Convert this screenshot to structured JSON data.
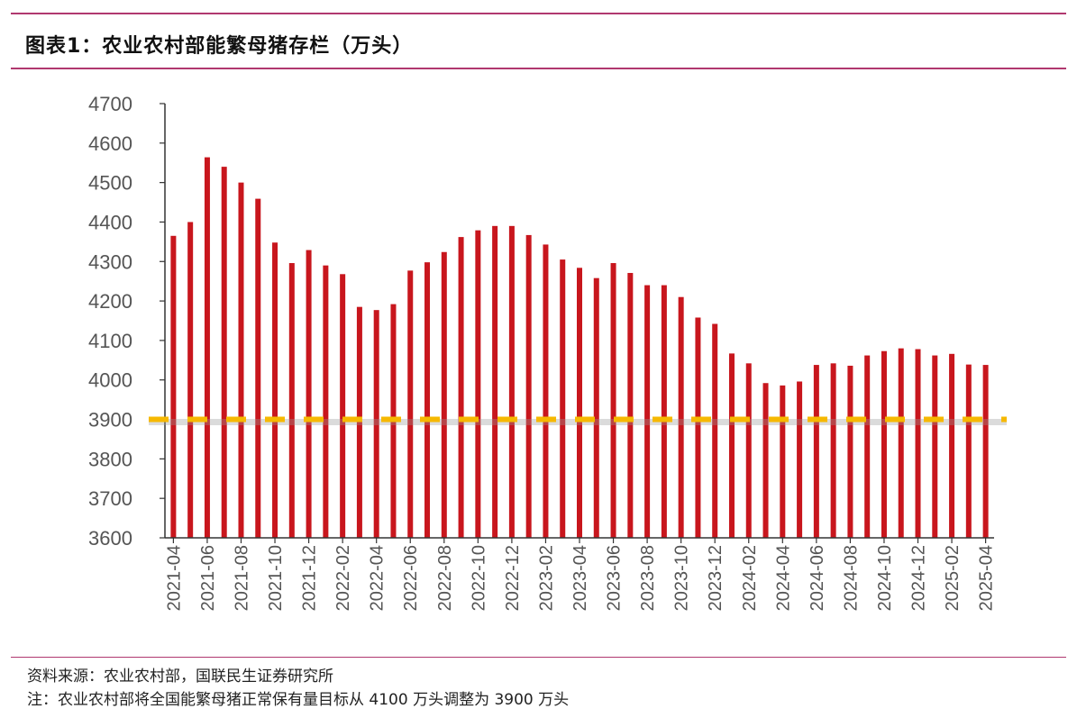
{
  "title": "图表1：农业农村部能繁母猪存栏（万头）",
  "source": "资料来源：农业农村部，国联民生证券研究所",
  "note": "注：农业农村部将全国能繁母猪正常保有量目标从 4100 万头调整为 3900 万头",
  "colors": {
    "bar": "#c8161d",
    "reference": "#f6b800",
    "axis": "#333333",
    "rule": "#b0386f"
  },
  "chart_data": {
    "type": "bar",
    "categories": [
      "2021-04",
      "2021-05",
      "2021-06",
      "2021-07",
      "2021-08",
      "2021-09",
      "2021-10",
      "2021-11",
      "2021-12",
      "2022-01",
      "2022-02",
      "2022-03",
      "2022-04",
      "2022-05",
      "2022-06",
      "2022-07",
      "2022-08",
      "2022-09",
      "2022-10",
      "2022-11",
      "2022-12",
      "2023-01",
      "2023-02",
      "2023-03",
      "2023-04",
      "2023-05",
      "2023-06",
      "2023-07",
      "2023-08",
      "2023-09",
      "2023-10",
      "2023-11",
      "2023-12",
      "2024-01",
      "2024-02",
      "2024-03",
      "2024-04",
      "2024-05",
      "2024-06",
      "2024-07",
      "2024-08",
      "2024-09",
      "2024-10",
      "2024-11",
      "2024-12",
      "2025-01",
      "2025-02",
      "2025-03",
      "2025-04"
    ],
    "tick_labels": [
      "2021-04",
      "2021-06",
      "2021-08",
      "2021-10",
      "2021-12",
      "2022-02",
      "2022-04",
      "2022-06",
      "2022-08",
      "2022-10",
      "2022-12",
      "2023-02",
      "2023-04",
      "2023-06",
      "2023-08",
      "2023-10",
      "2023-12",
      "2024-02",
      "2024-04",
      "2024-06",
      "2024-08",
      "2024-10",
      "2024-12",
      "2025-02",
      "2025-04"
    ],
    "values": [
      4365,
      4400,
      4564,
      4540,
      4500,
      4459,
      4348,
      4296,
      4329,
      4290,
      4268,
      4185,
      4177,
      4192,
      4277,
      4298,
      4324,
      4362,
      4379,
      4390,
      4390,
      4367,
      4343,
      4305,
      4284,
      4258,
      4296,
      4271,
      4240,
      4240,
      4210,
      4158,
      4142,
      4067,
      4042,
      3992,
      3986,
      3996,
      4038,
      4042,
      4036,
      4062,
      4073,
      4080,
      4078,
      4062,
      4066,
      4039,
      4038
    ],
    "reference_line": 3900,
    "ylim": [
      3600,
      4700
    ],
    "yticks": [
      3600,
      3700,
      3800,
      3900,
      4000,
      4100,
      4200,
      4300,
      4400,
      4500,
      4600,
      4700
    ],
    "grid": false,
    "legend": "none"
  }
}
